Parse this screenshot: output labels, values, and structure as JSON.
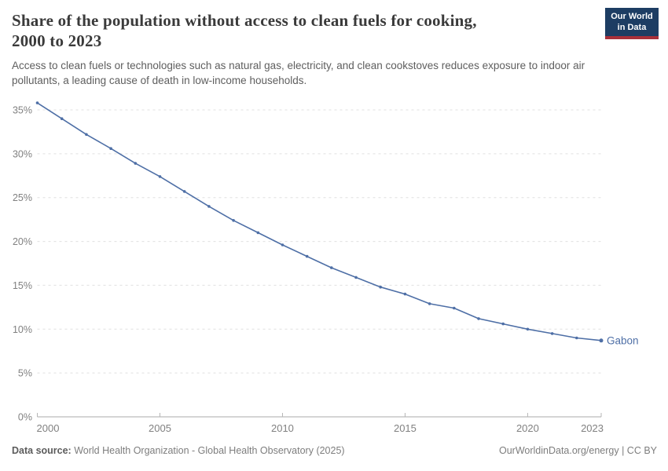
{
  "header": {
    "title_line1": "Share of the population without access to clean fuels for cooking,",
    "title_line2": "2000 to 2023",
    "subtitle": "Access to clean fuels or technologies such as natural gas, electricity, and clean cookstoves reduces exposure to indoor air pollutants, a leading cause of death in low-income households."
  },
  "logo": {
    "line1": "Our World",
    "line2": "in Data",
    "bg_color": "#1d3d63",
    "accent_color": "#a8303a"
  },
  "chart_data": {
    "type": "line",
    "title": "Share of the population without access to clean fuels for cooking, 2000 to 2023",
    "xlabel": "",
    "ylabel": "",
    "xlim": [
      2000,
      2023
    ],
    "ylim": [
      0,
      35
    ],
    "yticks": [
      0,
      5,
      10,
      15,
      20,
      25,
      30,
      35
    ],
    "ytick_suffix": "%",
    "xticks": [
      2000,
      2005,
      2010,
      2015,
      2020,
      2023
    ],
    "grid": "horizontal-dashed",
    "legend_position": "end-of-line",
    "series": [
      {
        "name": "Gabon",
        "color": "#4e6fa6",
        "x": [
          2000,
          2001,
          2002,
          2003,
          2004,
          2005,
          2006,
          2007,
          2008,
          2009,
          2010,
          2011,
          2012,
          2013,
          2014,
          2015,
          2016,
          2017,
          2018,
          2019,
          2020,
          2021,
          2022,
          2023
        ],
        "values": [
          35.8,
          34.0,
          32.2,
          30.6,
          28.9,
          27.4,
          25.7,
          24.0,
          22.4,
          21.0,
          19.6,
          18.3,
          17.0,
          15.9,
          14.8,
          14.0,
          12.9,
          12.4,
          11.2,
          10.6,
          10.0,
          9.5,
          9.0,
          8.7
        ]
      }
    ]
  },
  "footer": {
    "source_label": "Data source:",
    "source_text": " World Health Organization - Global Health Observatory (2025)",
    "right_text": "OurWorldinData.org/energy | CC BY"
  }
}
